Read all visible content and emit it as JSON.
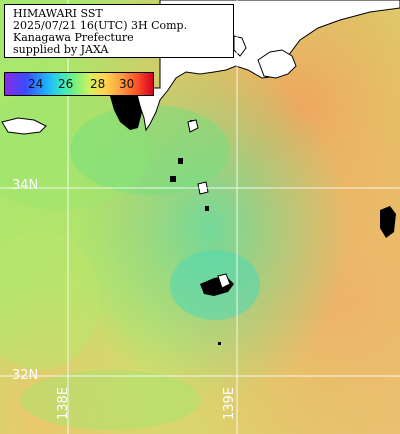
{
  "title": {
    "lines": [
      "HIMAWARI SST",
      "2025/07/21 16(UTC) 3H Comp.",
      "Kanagawa Prefecture",
      "supplied by JAXA"
    ]
  },
  "colorbar": {
    "labels": [
      "24",
      "26",
      "28",
      "30"
    ],
    "gradient_colors": [
      "#8a2be2",
      "#3a4cff",
      "#1fb0ff",
      "#33e5c8",
      "#7cf27a",
      "#d9f05a",
      "#ffd24d",
      "#ffa040",
      "#ff5a2a",
      "#d80020"
    ]
  },
  "coordinates": {
    "lat_34": "34N",
    "lat_32": "32N",
    "lon_138": "138E",
    "lon_139": "139E"
  },
  "colors": {
    "land": "#ffffff",
    "land_outline": "#000000",
    "cloud_mask": "#000000",
    "grid": "#ffffff",
    "sea_cool": "#7fe07a",
    "sea_mid": "#c9e46a",
    "sea_warm": "#f2b86a",
    "sea_teal": "#44d8b0"
  }
}
